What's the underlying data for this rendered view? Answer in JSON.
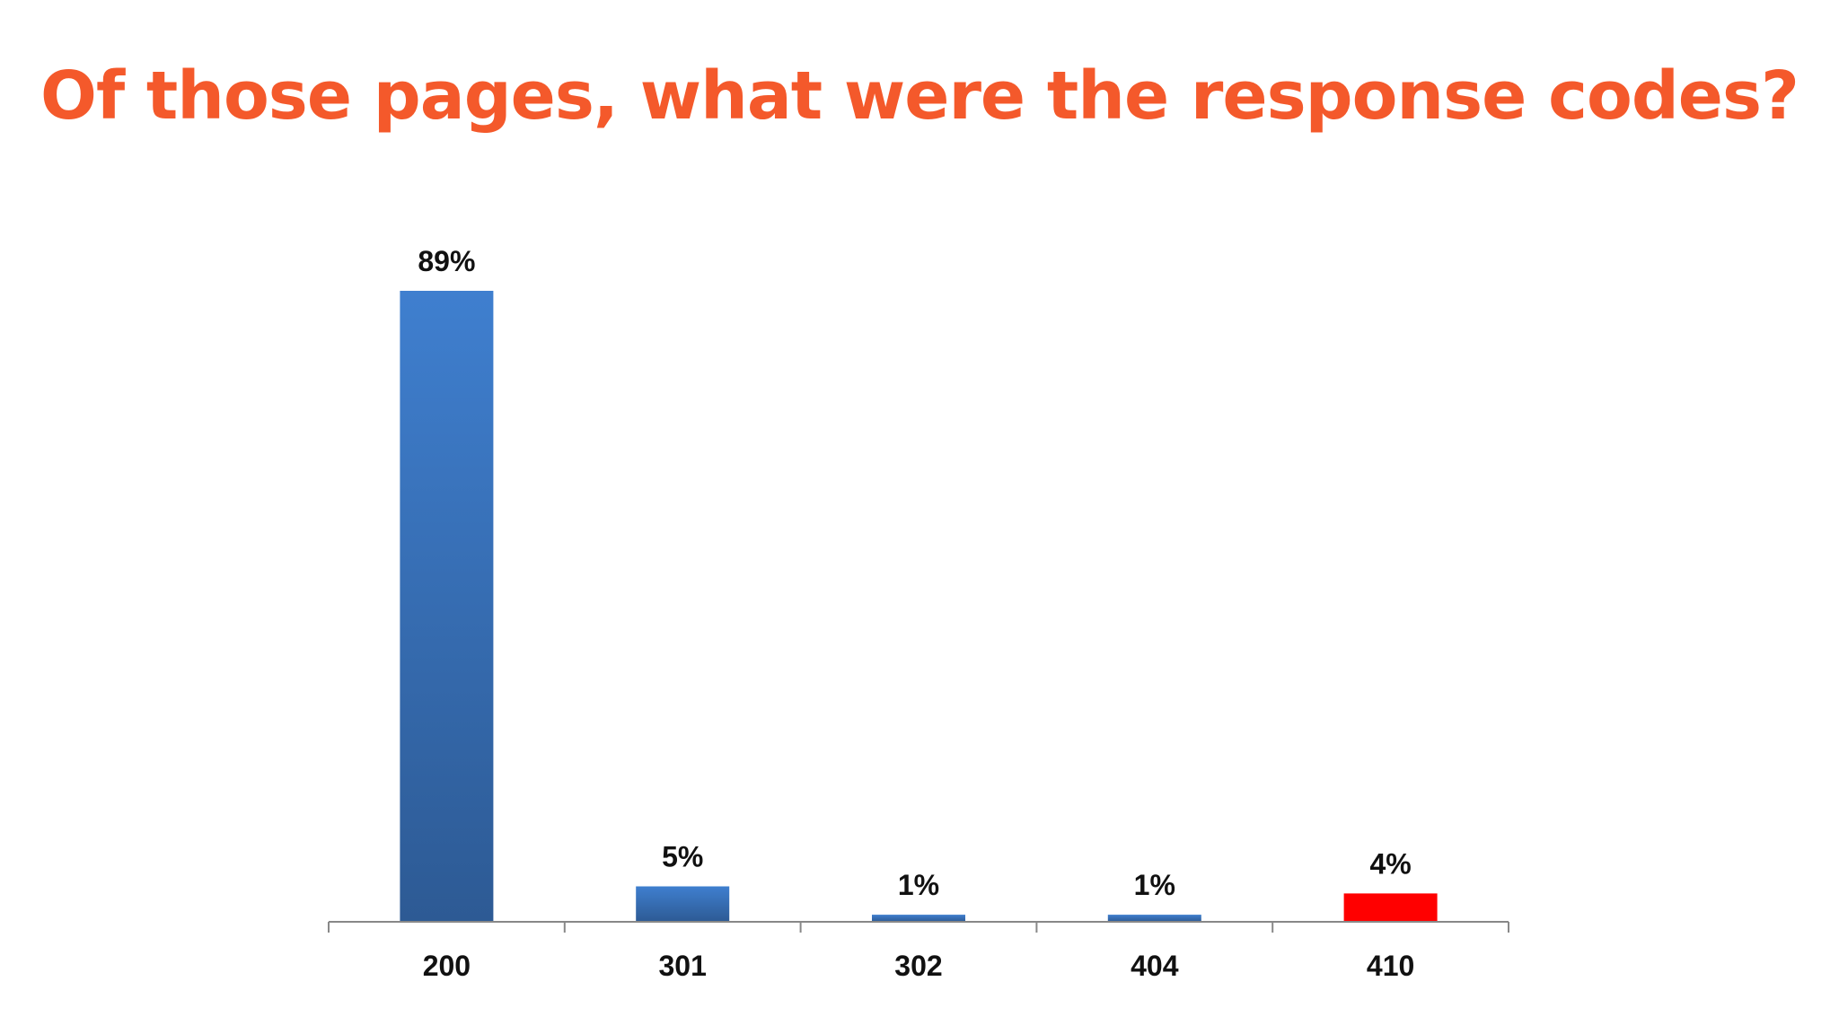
{
  "slide": {
    "title": "Of those pages, what were the response codes?",
    "title_color": "#f4592b"
  },
  "chart_data": {
    "type": "bar",
    "title": "",
    "xlabel": "",
    "ylabel": "",
    "categories": [
      "200",
      "301",
      "302",
      "404",
      "410"
    ],
    "values": [
      89,
      5,
      1,
      1,
      4
    ],
    "value_labels": [
      "89%",
      "5%",
      "1%",
      "1%",
      "4%"
    ],
    "ylim": [
      0,
      100
    ],
    "grid": false,
    "legend": "none",
    "colors": {
      "bar_top": "#3f7fcf",
      "bar_bottom": "#2d5a94",
      "highlight": "#ff0000",
      "axis": "#888888"
    },
    "highlight_categories": [
      "410"
    ]
  }
}
